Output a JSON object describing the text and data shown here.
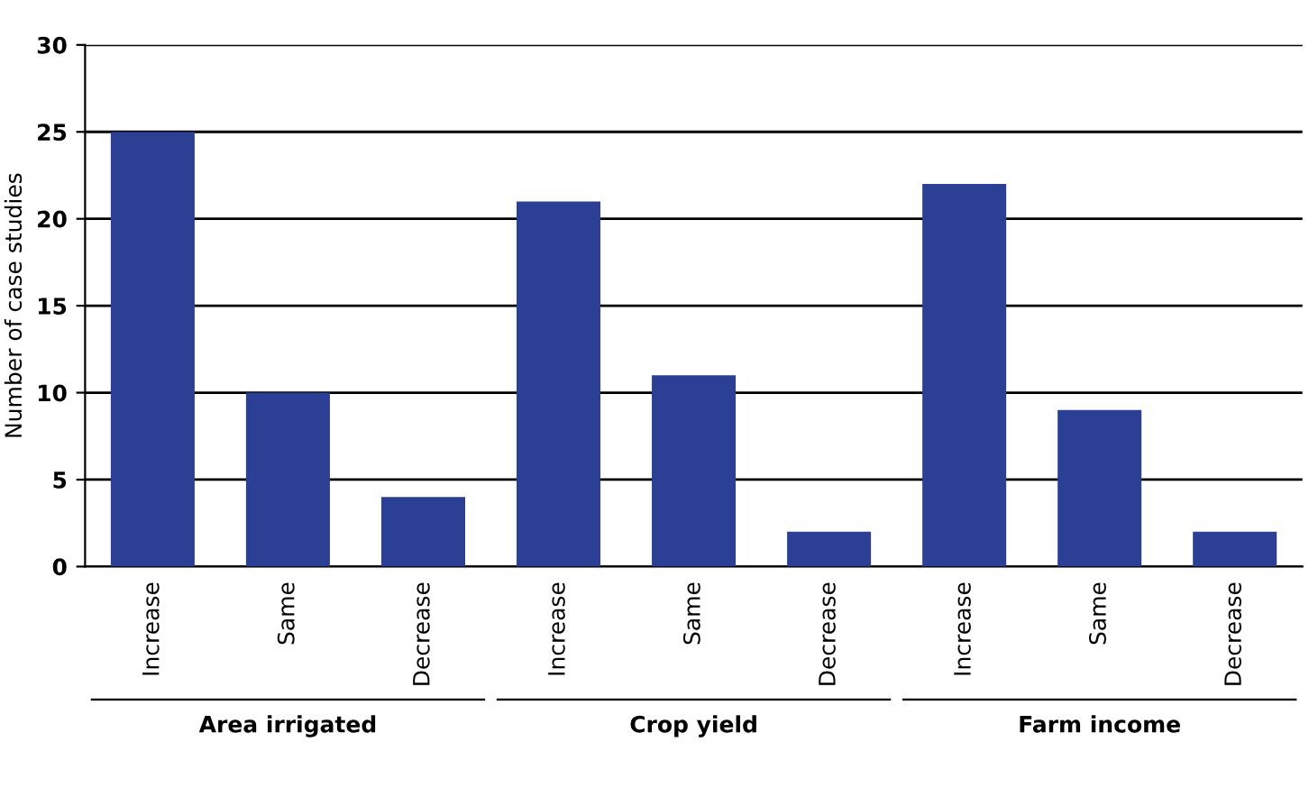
{
  "chart_data": {
    "type": "bar",
    "ylabel": "Number of case studies",
    "categories": [
      "Increase",
      "Same",
      "Decrease",
      "Increase",
      "Same",
      "Decrease",
      "Increase",
      "Same",
      "Decrease"
    ],
    "values": [
      25,
      10,
      4,
      21,
      11,
      2,
      22,
      9,
      2
    ],
    "color": "#2b3f95",
    "ylim": [
      0,
      30
    ],
    "yticks": [
      0,
      5,
      10,
      15,
      20,
      25,
      30
    ],
    "grid": "y",
    "annotations": [
      "Area irrigated",
      "Crop yield",
      "Farm income"
    ]
  }
}
